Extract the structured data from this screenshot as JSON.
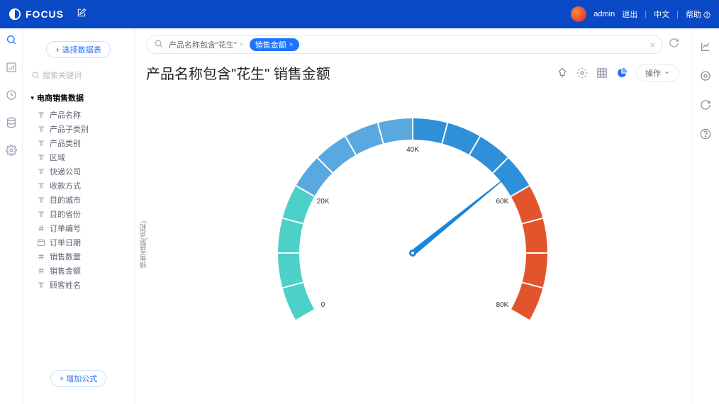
{
  "brand": "FOCUS",
  "topbar": {
    "user": "admin",
    "logout": "退出",
    "lang": "中文",
    "help": "帮助"
  },
  "sidebar": {
    "select_btn": "+ 选择数据表",
    "search_placeholder": "搜索关键词",
    "table_name": "电商销售数据",
    "fields": [
      {
        "icon": "T",
        "label": "产品名称"
      },
      {
        "icon": "T",
        "label": "产品子类别"
      },
      {
        "icon": "T",
        "label": "产品类别"
      },
      {
        "icon": "T",
        "label": "区域"
      },
      {
        "icon": "T",
        "label": "快递公司"
      },
      {
        "icon": "T",
        "label": "收款方式"
      },
      {
        "icon": "T",
        "label": "目的城市"
      },
      {
        "icon": "T",
        "label": "目的省份"
      },
      {
        "icon": "#",
        "label": "订单编号"
      },
      {
        "icon": "d",
        "label": "订单日期"
      },
      {
        "icon": "#",
        "label": "销售数量"
      },
      {
        "icon": "#",
        "label": "销售金额"
      },
      {
        "icon": "T",
        "label": "顾客姓名"
      }
    ],
    "add_formula": "+ 增加公式"
  },
  "search": {
    "chip1": "产品名称包含\"花生\"",
    "chip2": "销售金额"
  },
  "title": "产品名称包含\"花生\"  销售金额",
  "ops_btn": "操作",
  "chart": {
    "type": "gauge",
    "y_label": "销售金额(总和)",
    "min": 0,
    "max": 80000,
    "value": 57000,
    "ticks": [
      {
        "v": 0,
        "label": "0"
      },
      {
        "v": 20000,
        "label": "20K"
      },
      {
        "v": 40000,
        "label": "40K"
      },
      {
        "v": 60000,
        "label": "60K"
      },
      {
        "v": 80000,
        "label": "80K"
      }
    ],
    "segments": [
      {
        "from": 0,
        "to": 20000,
        "color": "#4dd0c8"
      },
      {
        "from": 20000,
        "to": 40000,
        "color": "#5aa8e0"
      },
      {
        "from": 40000,
        "to": 60000,
        "color": "#2f8fd8"
      },
      {
        "from": 60000,
        "to": 80000,
        "color": "#e2552c"
      }
    ],
    "needle_color": "#1a86d9",
    "tick_mark_color": "#ffffff",
    "background": "#ffffff",
    "outer_radius": 190,
    "inner_radius": 160,
    "start_angle_deg": 210,
    "end_angle_deg": -30
  }
}
